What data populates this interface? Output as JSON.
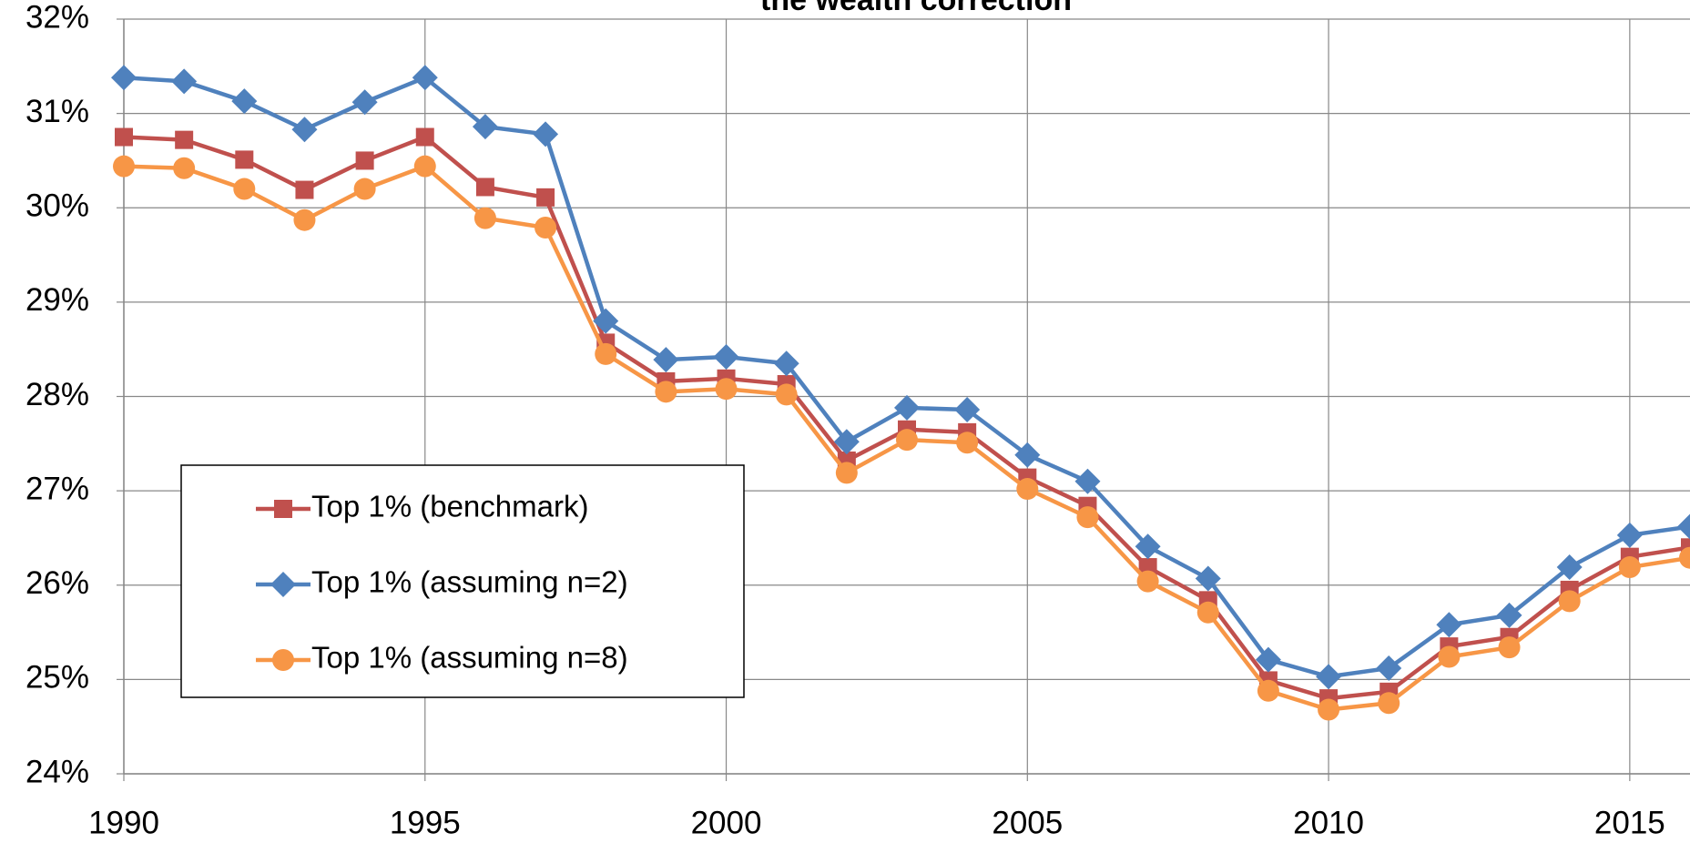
{
  "chart_data": {
    "type": "line",
    "title": "the wealth correction",
    "x": [
      1990,
      1991,
      1992,
      1993,
      1994,
      1995,
      1996,
      1997,
      1998,
      1999,
      2000,
      2001,
      2002,
      2003,
      2004,
      2005,
      2006,
      2007,
      2008,
      2009,
      2010,
      2011,
      2012,
      2013,
      2014,
      2015,
      2016
    ],
    "series": [
      {
        "name": "Top 1% (benchmark)",
        "color": "#c0504d",
        "marker": "square",
        "values": [
          30.75,
          30.72,
          30.51,
          30.19,
          30.5,
          30.75,
          30.22,
          30.11,
          28.57,
          28.16,
          28.19,
          28.13,
          27.32,
          27.65,
          27.62,
          27.14,
          26.84,
          26.19,
          25.84,
          24.99,
          24.8,
          24.87,
          25.35,
          25.45,
          25.95,
          26.3,
          26.4
        ]
      },
      {
        "name": "Top 1% (assuming n=2)",
        "color": "#4f81bd",
        "marker": "diamond",
        "values": [
          31.38,
          31.34,
          31.13,
          30.83,
          31.12,
          31.38,
          30.86,
          30.78,
          28.8,
          28.39,
          28.42,
          28.35,
          27.52,
          27.88,
          27.86,
          27.38,
          27.1,
          26.41,
          26.07,
          25.21,
          25.03,
          25.12,
          25.58,
          25.68,
          26.19,
          26.53,
          26.62
        ]
      },
      {
        "name": "Top 1% (assuming n=8)",
        "color": "#f79646",
        "marker": "circle",
        "values": [
          30.44,
          30.42,
          30.2,
          29.87,
          30.2,
          30.44,
          29.89,
          29.79,
          28.45,
          28.05,
          28.08,
          28.02,
          27.19,
          27.54,
          27.51,
          27.02,
          26.72,
          26.04,
          25.71,
          24.88,
          24.68,
          24.75,
          25.24,
          25.34,
          25.83,
          26.19,
          26.29
        ]
      }
    ],
    "xlim": [
      1990,
      2016
    ],
    "xticks": [
      1990,
      1995,
      2000,
      2005,
      2010,
      2015
    ],
    "ylim": [
      24,
      32
    ],
    "yticks": [
      {
        "value": 24,
        "label": "24%"
      },
      {
        "value": 25,
        "label": "25%"
      },
      {
        "value": 26,
        "label": "26%"
      },
      {
        "value": 27,
        "label": "27%"
      },
      {
        "value": 28,
        "label": "28%"
      },
      {
        "value": 29,
        "label": "29%"
      },
      {
        "value": 30,
        "label": "30%"
      },
      {
        "value": 31,
        "label": "31%"
      },
      {
        "value": 32,
        "label": "32%"
      }
    ],
    "grid": true,
    "legend": "lower-left"
  }
}
